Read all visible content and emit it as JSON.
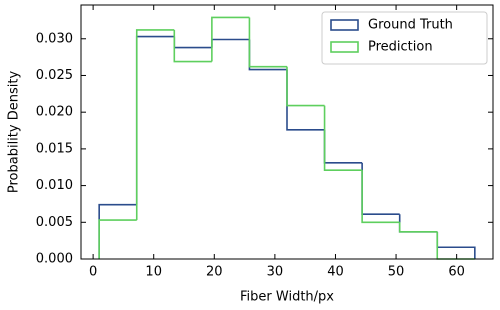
{
  "chart_data": {
    "type": "step-histogram",
    "xlabel": "Fiber Width/px",
    "ylabel": "Probability Density",
    "bins": [
      1,
      7.2,
      13.4,
      19.6,
      25.8,
      32,
      38.2,
      44.4,
      50.6,
      56.8,
      63
    ],
    "series": [
      {
        "name": "Ground Truth",
        "color": "#2b4c8c",
        "values": [
          0.0074,
          0.0303,
          0.0288,
          0.0299,
          0.0258,
          0.0176,
          0.0131,
          0.0061,
          0.0037,
          0.0016
        ]
      },
      {
        "name": "Prediction",
        "color": "#5ecf5e",
        "values": [
          0.0053,
          0.0312,
          0.0269,
          0.0329,
          0.0262,
          0.0209,
          0.0121,
          0.005,
          0.0037,
          0
        ]
      }
    ],
    "xlim": [
      -2,
      66
    ],
    "ylim": [
      0,
      0.0346
    ],
    "xticks": [
      0,
      10,
      20,
      30,
      40,
      50,
      60
    ],
    "yticks": [
      {
        "value": 0,
        "label": "0.000"
      },
      {
        "value": 0.005,
        "label": "0.005"
      },
      {
        "value": 0.01,
        "label": "0.010"
      },
      {
        "value": 0.015,
        "label": "0.015"
      },
      {
        "value": 0.02,
        "label": "0.020"
      },
      {
        "value": 0.025,
        "label": "0.025"
      },
      {
        "value": 0.03,
        "label": "0.030"
      }
    ],
    "legend": "upper right"
  }
}
